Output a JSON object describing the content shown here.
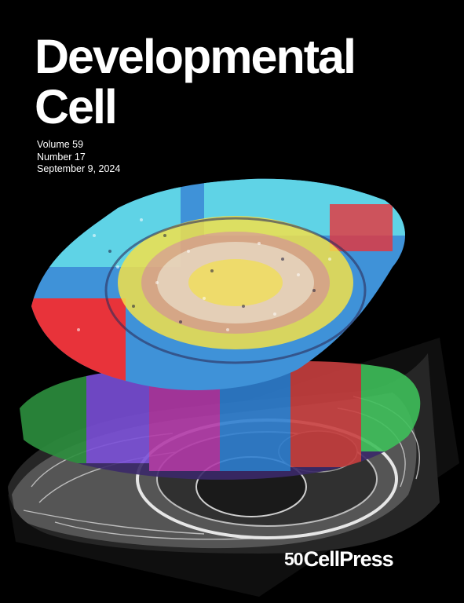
{
  "journal": {
    "title_line1": "Developmental",
    "title_line2": "Cell"
  },
  "issue": {
    "volume": "Volume 59",
    "number": "Number 17",
    "date": "September 9, 2024"
  },
  "publisher": {
    "anniversary_mark": "50",
    "name": "CellPress"
  },
  "cover_art": {
    "icon": "segmented-tissue-stack-image",
    "colors": {
      "background": "#000000",
      "cyan": "#5fd3e6",
      "blue": "#4f7fe0",
      "red": "#e8333a",
      "yellow": "#f2e04a",
      "magenta": "#d04fd0",
      "green": "#3fbf5a",
      "purple": "#7a4fd8",
      "gray_scan": "#d8d8d8"
    }
  }
}
